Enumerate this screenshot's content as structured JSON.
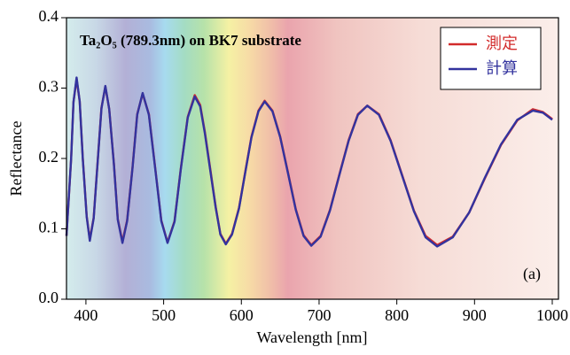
{
  "chart_data": {
    "type": "line",
    "title": "Ta₂O₅ (789.3nm) on BK7 substrate",
    "x_label": "Wavelength [nm]",
    "y_label": "Reflectance",
    "annotation": "(a)",
    "legend": "upper right",
    "x": [
      375,
      381,
      384,
      388,
      392,
      396,
      401,
      405,
      410,
      415,
      420,
      425,
      430,
      436,
      441,
      447,
      453,
      460,
      466,
      473,
      481,
      489,
      497,
      505,
      514,
      522,
      531,
      540,
      547,
      553,
      560,
      567,
      573,
      580,
      588,
      597,
      605,
      613,
      622,
      630,
      640,
      650,
      660,
      670,
      680,
      690,
      702,
      714,
      726,
      738,
      750,
      762,
      777,
      792,
      807,
      822,
      837,
      852,
      872,
      893,
      913,
      934,
      955,
      975,
      988,
      1000
    ],
    "series": [
      {
        "name": "測定",
        "color": "#d22b2b",
        "values": [
          0.09,
          0.2,
          0.28,
          0.313,
          0.281,
          0.2,
          0.118,
          0.085,
          0.116,
          0.194,
          0.272,
          0.302,
          0.27,
          0.193,
          0.114,
          0.082,
          0.112,
          0.188,
          0.263,
          0.292,
          0.263,
          0.188,
          0.112,
          0.081,
          0.111,
          0.185,
          0.259,
          0.29,
          0.276,
          0.238,
          0.185,
          0.131,
          0.093,
          0.079,
          0.093,
          0.13,
          0.181,
          0.231,
          0.268,
          0.282,
          0.268,
          0.231,
          0.18,
          0.128,
          0.091,
          0.077,
          0.09,
          0.127,
          0.177,
          0.226,
          0.263,
          0.275,
          0.263,
          0.226,
          0.176,
          0.126,
          0.09,
          0.077,
          0.089,
          0.123,
          0.171,
          0.219,
          0.254,
          0.27,
          0.266,
          0.256
        ]
      },
      {
        "name": "計算",
        "color": "#33339e",
        "values": [
          0.09,
          0.2,
          0.28,
          0.315,
          0.281,
          0.199,
          0.117,
          0.083,
          0.115,
          0.193,
          0.271,
          0.303,
          0.27,
          0.192,
          0.113,
          0.08,
          0.111,
          0.187,
          0.262,
          0.293,
          0.262,
          0.187,
          0.111,
          0.08,
          0.11,
          0.184,
          0.258,
          0.288,
          0.274,
          0.236,
          0.183,
          0.13,
          0.092,
          0.078,
          0.092,
          0.129,
          0.18,
          0.23,
          0.267,
          0.281,
          0.267,
          0.23,
          0.179,
          0.127,
          0.09,
          0.076,
          0.089,
          0.126,
          0.176,
          0.225,
          0.262,
          0.275,
          0.262,
          0.225,
          0.175,
          0.125,
          0.088,
          0.075,
          0.088,
          0.123,
          0.172,
          0.22,
          0.255,
          0.268,
          0.265,
          0.255
        ]
      }
    ],
    "xlim": [
      375,
      1008
    ],
    "ylim": [
      0,
      0.4
    ],
    "xticks": [
      400,
      500,
      600,
      700,
      800,
      900,
      1000
    ],
    "yticks": [
      {
        "value": 0,
        "label": "0.0"
      },
      0.1,
      0.2,
      0.3,
      0.4
    ]
  }
}
